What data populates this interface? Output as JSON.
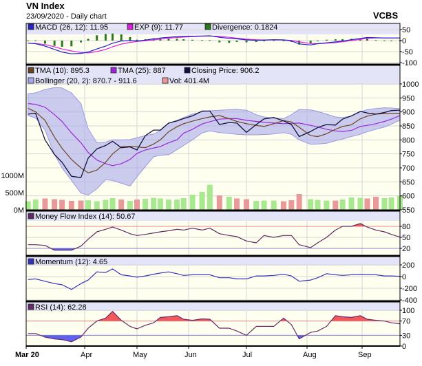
{
  "header": {
    "title": "VN Index",
    "subtitle": "23/09/2020 - Daily chart",
    "brand": "VCBS"
  },
  "legends": {
    "macd": "MACD (26, 12): 11.95",
    "exp": "EXP (9): 11.77",
    "divergence": "Divergence: 0.1824",
    "tma10": "TMA (10): 895.3",
    "tma25": "TMA (25): 887",
    "close": "Closing Price: 906.2",
    "bollinger": "Bollinger (20, 2): 870.7 - 911.6",
    "vol": "Vol: 401.4M",
    "mfi": "Money Flow Index (14): 50.67",
    "momentum": "Momentum (12): 4.65",
    "rsi": "RSI (14): 62.28"
  },
  "colors": {
    "macd": "#2424c8",
    "exp": "#e020e0",
    "divergence": "#2a7a1a",
    "tma10": "#6b4422",
    "tma25": "#9a28d8",
    "close": "#10103c",
    "bollinger": "#a8a8ec",
    "vol_up": "#a8e890",
    "vol_down": "#e89a9a",
    "mfi": "#5e2a66",
    "momentum": "#3434b8",
    "rsi": "#6a2a6a",
    "overbought": "#f05a5a",
    "oversold": "#6060ee",
    "plot_bg": "#fffff0",
    "legend_bg": "#e4e4f8"
  },
  "chart_data": {
    "type": "line",
    "x_ticks": [
      "Mar 20",
      "Apr",
      "May",
      "Jun",
      "Jul",
      "Aug",
      "Sep"
    ],
    "dates": [
      "2020-03-02",
      "2020-03-06",
      "2020-03-11",
      "2020-03-16",
      "2020-03-20",
      "2020-03-25",
      "2020-03-30",
      "2020-04-03",
      "2020-04-08",
      "2020-04-13",
      "2020-04-17",
      "2020-04-22",
      "2020-04-27",
      "2020-05-01",
      "2020-05-06",
      "2020-05-11",
      "2020-05-15",
      "2020-05-20",
      "2020-05-25",
      "2020-05-29",
      "2020-06-03",
      "2020-06-08",
      "2020-06-12",
      "2020-06-17",
      "2020-06-22",
      "2020-06-26",
      "2020-07-01",
      "2020-07-06",
      "2020-07-10",
      "2020-07-15",
      "2020-07-20",
      "2020-07-24",
      "2020-07-28",
      "2020-08-03",
      "2020-08-07",
      "2020-08-12",
      "2020-08-17",
      "2020-08-21",
      "2020-08-26",
      "2020-08-31",
      "2020-09-04",
      "2020-09-09",
      "2020-09-14",
      "2020-09-18",
      "2020-09-23"
    ],
    "macd_panel": {
      "y_ticks": [
        50,
        0,
        -50,
        -100
      ],
      "macd": [
        -12,
        -14,
        -25,
        -40,
        -52,
        -60,
        -58,
        -52,
        -38,
        -25,
        -12,
        -2,
        0,
        -2,
        2,
        8,
        12,
        15,
        18,
        19,
        20,
        21,
        22,
        15,
        10,
        8,
        3,
        1,
        2,
        4,
        3,
        -2,
        -15,
        -20,
        -14,
        -10,
        -6,
        -2,
        4,
        10,
        14,
        13,
        12,
        12,
        11.95
      ],
      "exp": [
        -12,
        -13,
        -18,
        -28,
        -38,
        -47,
        -54,
        -56,
        -50,
        -40,
        -28,
        -16,
        -8,
        -4,
        -1,
        3,
        7,
        11,
        14,
        16,
        18,
        20,
        21,
        19,
        15,
        11,
        7,
        4,
        3,
        3,
        3,
        1,
        -6,
        -13,
        -14,
        -12,
        -9,
        -5,
        0,
        6,
        10,
        12,
        12,
        12,
        11.77
      ]
    },
    "price_panel": {
      "y_ticks": [
        1000,
        950,
        900,
        850,
        800,
        750,
        700,
        650,
        600,
        550
      ],
      "volume_ticks": [
        "1000M",
        "500M",
        "0M"
      ],
      "close": [
        892,
        895,
        800,
        748,
        720,
        670,
        665,
        735,
        768,
        780,
        795,
        772,
        775,
        764,
        815,
        835,
        835,
        860,
        868,
        876,
        886,
        903,
        903,
        855,
        862,
        860,
        827,
        855,
        875,
        880,
        868,
        855,
        812,
        830,
        844,
        855,
        853,
        874,
        886,
        902,
        896,
        892,
        898,
        905,
        906.2
      ],
      "tma10": [
        913,
        900,
        870,
        810,
        770,
        730,
        700,
        682,
        692,
        720,
        750,
        775,
        777,
        775,
        772,
        785,
        800,
        829,
        847,
        858,
        867,
        876,
        882,
        887,
        876,
        866,
        858,
        852,
        848,
        858,
        869,
        864,
        845,
        815,
        812,
        822,
        838,
        848,
        854,
        875,
        885,
        892,
        894,
        895,
        895.3
      ],
      "tma25": [
        930,
        927,
        917,
        890,
        866,
        825,
        790,
        755,
        728,
        715,
        708,
        715,
        730,
        752,
        764,
        771,
        776,
        790,
        800,
        824,
        838,
        857,
        865,
        874,
        876,
        876,
        870,
        866,
        863,
        860,
        858,
        859,
        860,
        852,
        846,
        838,
        832,
        830,
        834,
        848,
        852,
        858,
        866,
        874,
        887
      ],
      "bollinger_upper": [
        965,
        968,
        980,
        987,
        986,
        968,
        930,
        840,
        790,
        792,
        800,
        800,
        801,
        808,
        815,
        821,
        833,
        860,
        870,
        880,
        892,
        900,
        904,
        906,
        908,
        909,
        906,
        890,
        882,
        878,
        876,
        890,
        909,
        907,
        902,
        892,
        882,
        880,
        885,
        900,
        908,
        912,
        915,
        914,
        911.6
      ],
      "bollinger_lower": [
        887,
        878,
        835,
        748,
        700,
        655,
        610,
        603,
        625,
        658,
        655,
        645,
        635,
        668,
        705,
        740,
        745,
        747,
        765,
        780,
        800,
        825,
        832,
        826,
        823,
        820,
        818,
        818,
        819,
        821,
        826,
        820,
        800,
        784,
        785,
        788,
        797,
        803,
        812,
        820,
        829,
        838,
        846,
        856,
        870.7
      ],
      "volume_millions": [
        250,
        300,
        330,
        310,
        290,
        260,
        270,
        280,
        250,
        290,
        340,
        300,
        260,
        300,
        320,
        350,
        330,
        300,
        300,
        340,
        440,
        520,
        730,
        420,
        380,
        330,
        310,
        260,
        270,
        270,
        250,
        280,
        460,
        310,
        290,
        270,
        270,
        300,
        360,
        350,
        330,
        380,
        340,
        360,
        401.4
      ]
    },
    "mfi_panel": {
      "y_ticks": [
        80,
        50,
        20
      ],
      "mfi": [
        30,
        30,
        28,
        15,
        15,
        15,
        26,
        45,
        65,
        72,
        78,
        70,
        60,
        55,
        58,
        62,
        65,
        68,
        72,
        70,
        75,
        70,
        75,
        60,
        55,
        52,
        40,
        35,
        55,
        50,
        55,
        55,
        30,
        22,
        35,
        50,
        70,
        80,
        80,
        88,
        78,
        70,
        65,
        58,
        50.67
      ]
    },
    "momentum_panel": {
      "y_ticks": [
        200,
        0,
        -200,
        -400
      ],
      "momentum": [
        -50,
        -40,
        -80,
        -120,
        -140,
        -220,
        -120,
        -60,
        80,
        70,
        130,
        30,
        10,
        -10,
        10,
        40,
        60,
        80,
        50,
        20,
        30,
        30,
        30,
        -20,
        -20,
        -40,
        -40,
        10,
        10,
        20,
        40,
        10,
        -80,
        -60,
        -20,
        50,
        30,
        20,
        30,
        40,
        30,
        30,
        10,
        10,
        4.65
      ]
    },
    "rsi_panel": {
      "y_ticks": [
        100,
        70,
        30,
        0
      ],
      "rsi": [
        35,
        35,
        25,
        20,
        18,
        12,
        25,
        50,
        70,
        78,
        97,
        72,
        55,
        48,
        58,
        65,
        80,
        82,
        85,
        75,
        72,
        76,
        75,
        50,
        50,
        42,
        30,
        55,
        55,
        55,
        78,
        60,
        20,
        38,
        42,
        55,
        85,
        82,
        80,
        85,
        75,
        72,
        70,
        65,
        62.28
      ]
    }
  }
}
